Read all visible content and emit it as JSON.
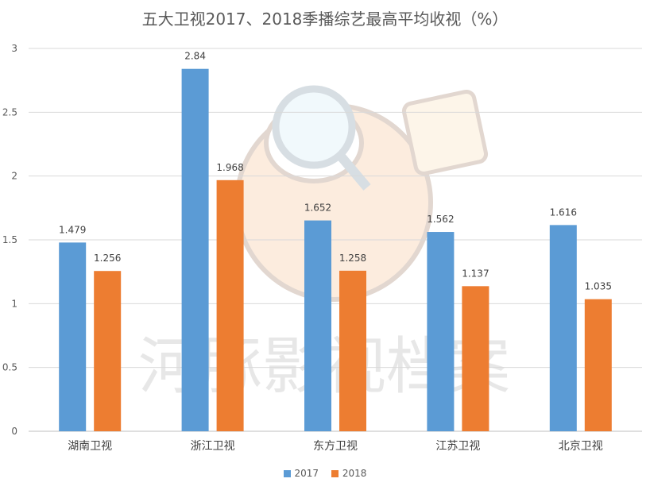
{
  "chart_data": {
    "type": "bar",
    "title": "五大卫视2017、2018季播综艺最高平均收视（%）",
    "xlabel": "",
    "ylabel": "",
    "categories": [
      "湖南卫视",
      "浙江卫视",
      "东方卫视",
      "江苏卫视",
      "北京卫视"
    ],
    "series": [
      {
        "name": "2017",
        "values": [
          1.479,
          2.84,
          1.652,
          1.562,
          1.616
        ],
        "color": "#5b9bd5"
      },
      {
        "name": "2018",
        "values": [
          1.256,
          1.968,
          1.258,
          1.137,
          1.035
        ],
        "color": "#ed7d31"
      }
    ],
    "ylim": [
      0,
      3
    ],
    "yticks": [
      "0",
      "0.5",
      "1",
      "1.5",
      "2",
      "2.5",
      "3"
    ],
    "grid": true,
    "legend": "bottom",
    "watermark": "河豚影视档案"
  }
}
